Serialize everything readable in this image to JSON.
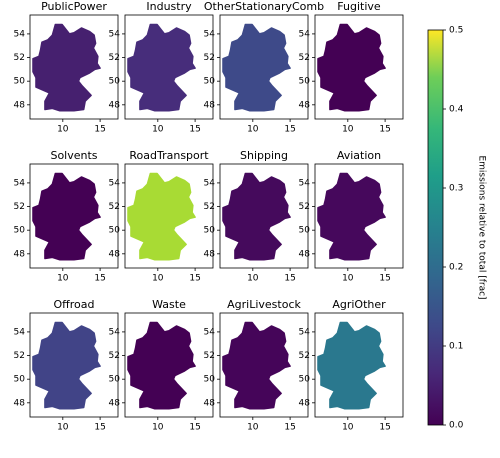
{
  "chart_data": {
    "type": "map",
    "xlim": [
      5.6,
      17.4
    ],
    "ylim": [
      46.8,
      55.6
    ],
    "xticks": [
      10,
      15
    ],
    "yticks": [
      48,
      50,
      52,
      54
    ],
    "panels": [
      {
        "title": "PublicPower",
        "color": "#46206f"
      },
      {
        "title": "Industry",
        "color": "#472d7b"
      },
      {
        "title": "OtherStationaryComb",
        "color": "#3e4a89"
      },
      {
        "title": "Fugitive",
        "color": "#440154"
      },
      {
        "title": "Solvents",
        "color": "#440154"
      },
      {
        "title": "RoadTransport",
        "color": "#a8db34"
      },
      {
        "title": "Shipping",
        "color": "#450a5c"
      },
      {
        "title": "Aviation",
        "color": "#46085c"
      },
      {
        "title": "Offroad",
        "color": "#414487"
      },
      {
        "title": "Waste",
        "color": "#440154"
      },
      {
        "title": "AgriLivestock",
        "color": "#450559"
      },
      {
        "title": "AgriOther",
        "color": "#2a788e"
      }
    ],
    "colorbar": {
      "label": "Emissions relative to total [frac]",
      "lim": [
        0,
        0.5
      ],
      "ticks": [
        {
          "value": 0,
          "label": "0.0"
        },
        0.1,
        0.2,
        0.3,
        0.4,
        0.5
      ]
    }
  }
}
